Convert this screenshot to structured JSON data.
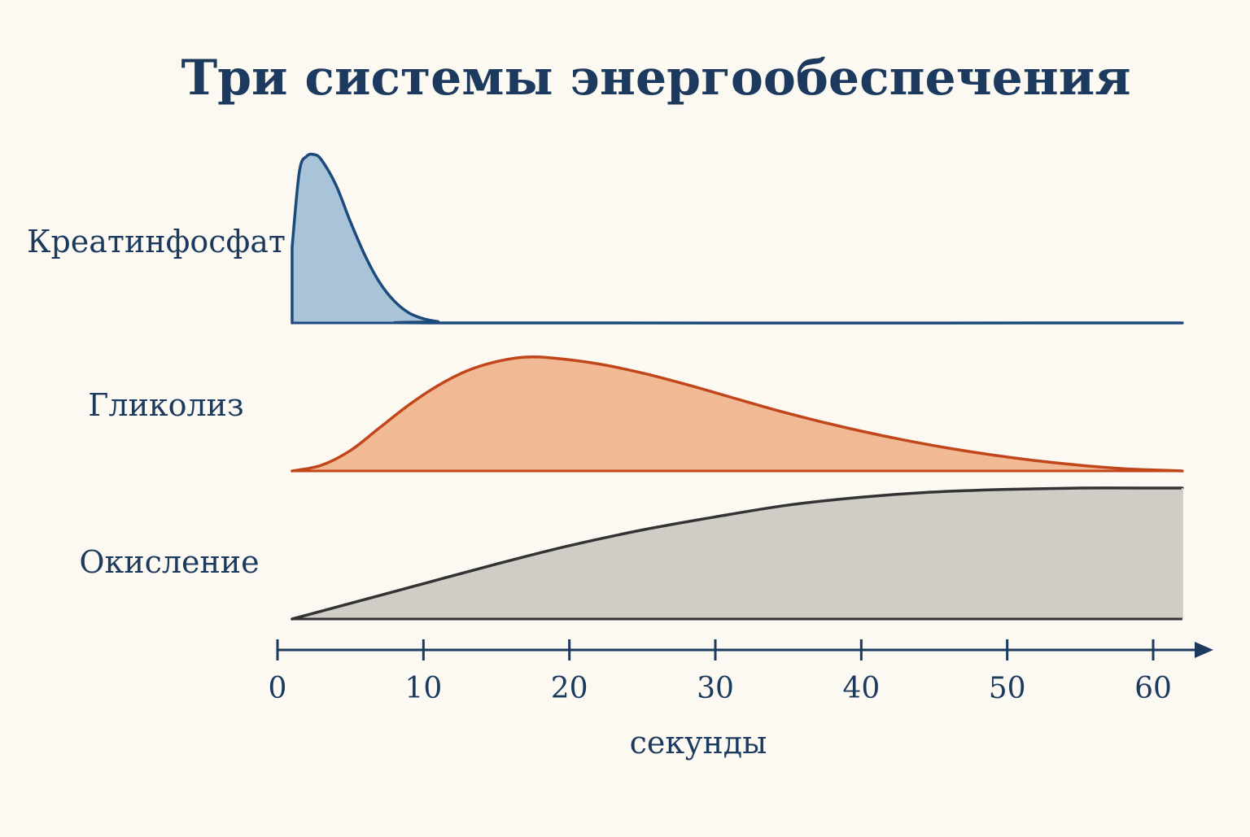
{
  "chart_data": {
    "type": "area",
    "title": "Три системы энергообеспечения",
    "xlabel": "секунды",
    "ylabel": "",
    "xlim": [
      0,
      62
    ],
    "x_ticks": [
      0,
      10,
      20,
      30,
      40,
      50,
      60
    ],
    "grid": false,
    "legend": "none",
    "series": [
      {
        "name": "Креатинфосфат",
        "color": "#1c4a7c",
        "fill": "#a9c3d8",
        "x": [
          1,
          1.5,
          2,
          2.5,
          3,
          4,
          5,
          6,
          7,
          8,
          9,
          10,
          11,
          12,
          62
        ],
        "y": [
          0.45,
          0.9,
          0.99,
          1.0,
          0.97,
          0.82,
          0.6,
          0.4,
          0.24,
          0.13,
          0.06,
          0.025,
          0.008,
          0,
          0
        ]
      },
      {
        "name": "Гликолиз",
        "color": "#c2461b",
        "fill": "#f1b994",
        "x": [
          1,
          3,
          5,
          7,
          9,
          11,
          13,
          15,
          17,
          19,
          22,
          25,
          28,
          31,
          34,
          37,
          40,
          43,
          46,
          49,
          52,
          55,
          58,
          61,
          62
        ],
        "y": [
          0,
          0.05,
          0.18,
          0.38,
          0.58,
          0.75,
          0.88,
          0.96,
          1.0,
          0.99,
          0.94,
          0.86,
          0.76,
          0.65,
          0.54,
          0.44,
          0.35,
          0.27,
          0.2,
          0.14,
          0.09,
          0.05,
          0.02,
          0.005,
          0
        ]
      },
      {
        "name": "Окисление",
        "color": "#333333",
        "fill": "#d0ccc6",
        "x": [
          1,
          5,
          10,
          15,
          20,
          25,
          30,
          35,
          40,
          45,
          50,
          55,
          60,
          62
        ],
        "y": [
          0,
          0.12,
          0.27,
          0.42,
          0.56,
          0.68,
          0.78,
          0.87,
          0.93,
          0.97,
          0.99,
          1.0,
          1.0,
          1.0
        ]
      }
    ]
  }
}
